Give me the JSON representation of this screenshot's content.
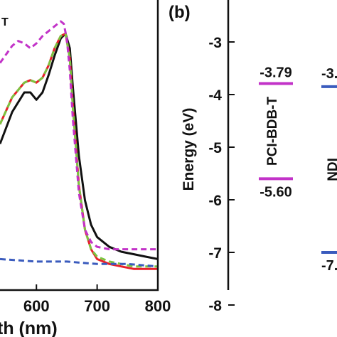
{
  "chart_data": [
    {
      "type": "line",
      "panel": "a",
      "xlabel": "th (nm)",
      "xlim": [
        540,
        800
      ],
      "xticks": [
        "600",
        "700",
        "800"
      ],
      "ylim": [
        0,
        1.05
      ],
      "legend_fragment": "T",
      "series": [
        {
          "color": "#111111",
          "style": "solid",
          "x": [
            540,
            560,
            580,
            590,
            600,
            610,
            620,
            630,
            640,
            648,
            655,
            660,
            670,
            680,
            690,
            700,
            720,
            740,
            760,
            780,
            800
          ],
          "y": [
            0.55,
            0.68,
            0.76,
            0.76,
            0.73,
            0.76,
            0.83,
            0.91,
            0.98,
            1.0,
            0.94,
            0.78,
            0.5,
            0.32,
            0.22,
            0.17,
            0.13,
            0.11,
            0.1,
            0.09,
            0.08
          ]
        },
        {
          "color": "#e8202a",
          "style": "solid",
          "x": [
            540,
            560,
            580,
            590,
            600,
            610,
            620,
            630,
            640,
            648,
            655,
            660,
            670,
            680,
            690,
            700,
            720,
            740,
            760,
            780,
            800
          ],
          "y": [
            0.63,
            0.74,
            0.8,
            0.81,
            0.8,
            0.82,
            0.87,
            0.94,
            0.99,
            1.0,
            0.9,
            0.7,
            0.38,
            0.2,
            0.12,
            0.08,
            0.06,
            0.05,
            0.04,
            0.04,
            0.04
          ]
        },
        {
          "color": "#7bc43f",
          "style": "dashed",
          "x": [
            540,
            560,
            580,
            590,
            600,
            610,
            620,
            630,
            640,
            648,
            655,
            660,
            670,
            680,
            690,
            700,
            720,
            740,
            760,
            780,
            800
          ],
          "y": [
            0.63,
            0.74,
            0.8,
            0.81,
            0.8,
            0.82,
            0.87,
            0.94,
            0.99,
            1.0,
            0.9,
            0.7,
            0.38,
            0.2,
            0.12,
            0.09,
            0.07,
            0.06,
            0.05,
            0.05,
            0.05
          ]
        },
        {
          "color": "#c233c8",
          "style": "dashed",
          "x": [
            540,
            560,
            570,
            580,
            590,
            600,
            610,
            620,
            630,
            640,
            645,
            650,
            655,
            660,
            670,
            680,
            690,
            700,
            720,
            740,
            760,
            780,
            800
          ],
          "y": [
            0.88,
            0.95,
            0.97,
            0.96,
            0.94,
            0.96,
            0.99,
            1.01,
            1.03,
            1.05,
            1.04,
            0.98,
            0.85,
            0.65,
            0.35,
            0.2,
            0.15,
            0.13,
            0.12,
            0.12,
            0.12,
            0.12,
            0.12
          ]
        },
        {
          "color": "#3a5bbd",
          "style": "dashed",
          "x": [
            540,
            600,
            650,
            700,
            750,
            800
          ],
          "y": [
            0.08,
            0.07,
            0.07,
            0.06,
            0.06,
            0.05
          ]
        }
      ]
    },
    {
      "type": "energy_level_diagram",
      "panel": "(b)",
      "ylabel": "Energy (eV)",
      "ylim": [
        -8,
        -2.5
      ],
      "yticks": [
        "-3",
        "-4",
        "-5",
        "-6",
        "-7",
        "-8"
      ],
      "levels": [
        {
          "material": "PCI-BDB-T",
          "lumo": -3.79,
          "homo": -5.6,
          "lumo_label": "-3.79",
          "homo_label": "-5.60",
          "color": "#c233c8"
        },
        {
          "material": "NDI",
          "lumo": -3.85,
          "homo": -7.0,
          "lumo_label": "-3.",
          "homo_label": "-7.",
          "color": "#3a5bbd"
        }
      ]
    }
  ]
}
